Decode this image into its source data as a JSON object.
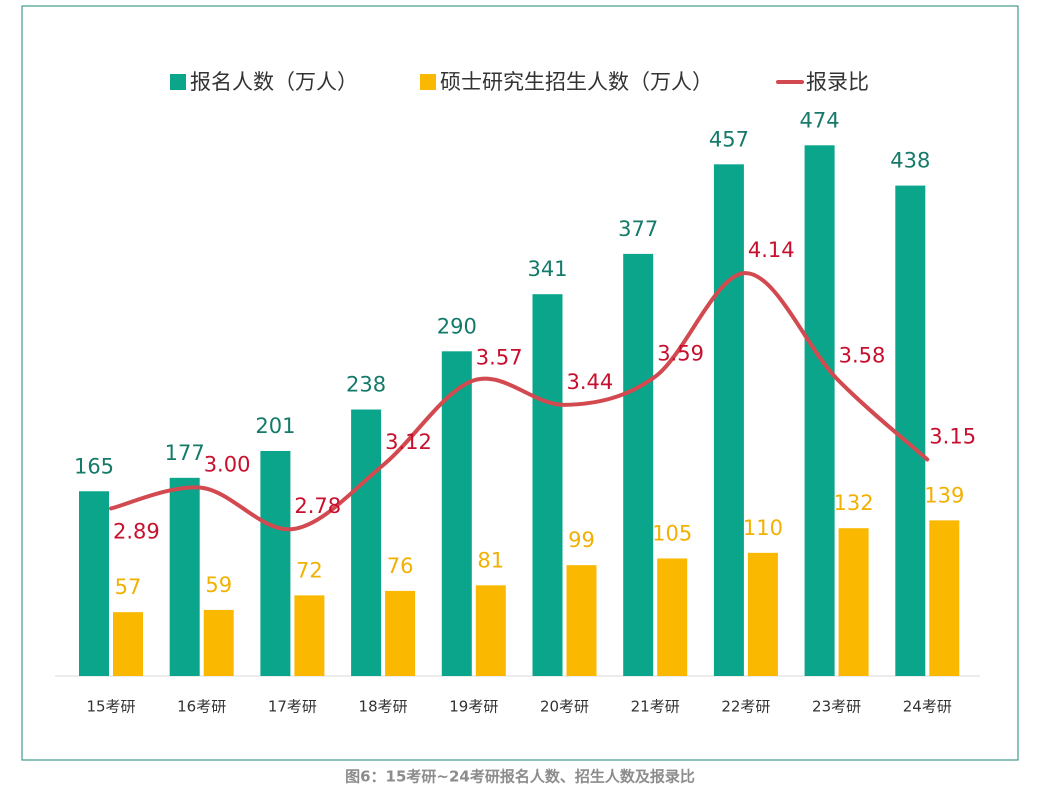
{
  "chart_data": {
    "type": "bar-line",
    "caption": "图6：15考研~24考研报名人数、招生人数及报录比",
    "categories": [
      "15考研",
      "16考研",
      "17考研",
      "18考研",
      "19考研",
      "20考研",
      "21考研",
      "22考研",
      "23考研",
      "24考研"
    ],
    "series": [
      {
        "name": "报名人数（万人）",
        "type": "bar",
        "color": "#0aa58a",
        "label_color": "#157a69",
        "values": [
          165,
          177,
          201,
          238,
          290,
          341,
          377,
          457,
          474,
          438
        ]
      },
      {
        "name": "硕士研究生招生人数（万人）",
        "type": "bar",
        "color": "#fbb800",
        "label_color": "#f2b000",
        "values": [
          57,
          59,
          72,
          76,
          81,
          99,
          105,
          110,
          132,
          139
        ]
      },
      {
        "name": "报录比",
        "type": "line",
        "axis": "y2",
        "color": "#d24a50",
        "label_color": "#c8102e",
        "values": [
          2.89,
          3.0,
          2.78,
          3.12,
          3.57,
          3.44,
          3.59,
          4.14,
          3.58,
          3.15
        ],
        "value_labels": [
          "2.89",
          "3.00",
          "2.78",
          "3.12",
          "3.57",
          "3.44",
          "3.59",
          "4.14",
          "3.58",
          "3.15"
        ]
      }
    ],
    "ylim": [
      0,
      560
    ],
    "y2lim": [
      2,
      5.33
    ]
  }
}
